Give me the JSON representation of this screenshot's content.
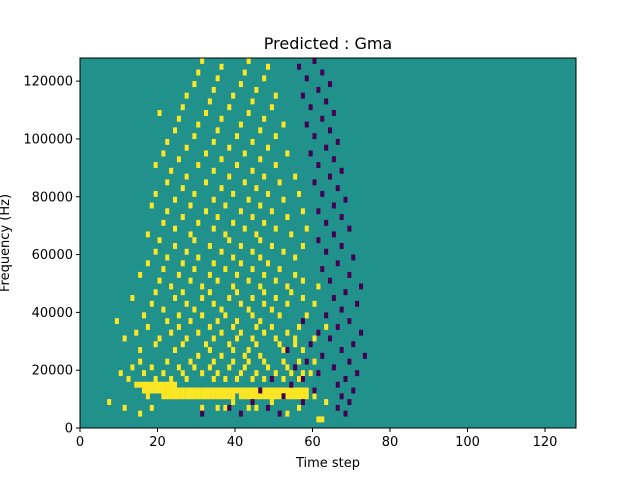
{
  "chart_data": {
    "type": "heatmap",
    "title": "Predicted : Gma",
    "xlabel": "Time step",
    "ylabel": "Frequency (Hz)",
    "xlim": [
      0,
      128
    ],
    "ylim": [
      0,
      128000
    ],
    "xticks": [
      0,
      20,
      40,
      60,
      80,
      100,
      120
    ],
    "yticks": [
      0,
      20000,
      40000,
      60000,
      80000,
      100000,
      120000
    ],
    "x_tick_labels": [
      "0",
      "20",
      "40",
      "60",
      "80",
      "100",
      "120"
    ],
    "y_tick_labels": [
      "0",
      "20000",
      "40000",
      "60000",
      "80000",
      "100000",
      "120000"
    ],
    "grid": false,
    "rows": 64,
    "cols": 128,
    "colors": {
      "background": "#21918c",
      "high": "#fde725",
      "low": "#440154"
    },
    "values_legend": "background = 0.5 (teal), high = 1 (yellow), low = 0 (purple)",
    "high_cells": [
      [
        1,
        62
      ],
      [
        1,
        61
      ],
      [
        2,
        53
      ],
      [
        2,
        15
      ],
      [
        3,
        56
      ],
      [
        3,
        45
      ],
      [
        3,
        43
      ],
      [
        3,
        37
      ],
      [
        3,
        35
      ],
      [
        3,
        31
      ],
      [
        3,
        18
      ],
      [
        3,
        11
      ],
      [
        4,
        63
      ],
      [
        4,
        49
      ],
      [
        4,
        39
      ],
      [
        4,
        7
      ],
      [
        5,
        60
      ],
      [
        5,
        58
      ],
      [
        5,
        57
      ],
      [
        5,
        56
      ],
      [
        5,
        55
      ],
      [
        5,
        54
      ],
      [
        5,
        53
      ],
      [
        5,
        52
      ],
      [
        5,
        51
      ],
      [
        5,
        50
      ],
      [
        5,
        49
      ],
      [
        5,
        48
      ],
      [
        5,
        47
      ],
      [
        5,
        46
      ],
      [
        5,
        45
      ],
      [
        5,
        44
      ],
      [
        5,
        43
      ],
      [
        5,
        42
      ],
      [
        5,
        41
      ],
      [
        5,
        39
      ],
      [
        5,
        38
      ],
      [
        5,
        37
      ],
      [
        5,
        36
      ],
      [
        5,
        35
      ],
      [
        5,
        34
      ],
      [
        5,
        33
      ],
      [
        5,
        32
      ],
      [
        5,
        31
      ],
      [
        5,
        30
      ],
      [
        5,
        29
      ],
      [
        5,
        28
      ],
      [
        5,
        27
      ],
      [
        5,
        26
      ],
      [
        5,
        25
      ],
      [
        5,
        24
      ],
      [
        5,
        23
      ],
      [
        5,
        22
      ],
      [
        5,
        21
      ],
      [
        5,
        17
      ],
      [
        6,
        58
      ],
      [
        6,
        57
      ],
      [
        6,
        56
      ],
      [
        6,
        55
      ],
      [
        6,
        54
      ],
      [
        6,
        53
      ],
      [
        6,
        52
      ],
      [
        6,
        51
      ],
      [
        6,
        50
      ],
      [
        6,
        49
      ],
      [
        6,
        48
      ],
      [
        6,
        47
      ],
      [
        6,
        46
      ],
      [
        6,
        45
      ],
      [
        6,
        44
      ],
      [
        6,
        43
      ],
      [
        6,
        42
      ],
      [
        6,
        41
      ],
      [
        6,
        40
      ],
      [
        6,
        39
      ],
      [
        6,
        38
      ],
      [
        6,
        37
      ],
      [
        6,
        36
      ],
      [
        6,
        35
      ],
      [
        6,
        34
      ],
      [
        6,
        33
      ],
      [
        6,
        32
      ],
      [
        6,
        31
      ],
      [
        6,
        30
      ],
      [
        6,
        29
      ],
      [
        6,
        28
      ],
      [
        6,
        27
      ],
      [
        6,
        26
      ],
      [
        6,
        25
      ],
      [
        6,
        24
      ],
      [
        6,
        23
      ],
      [
        6,
        22
      ],
      [
        6,
        21
      ],
      [
        6,
        20
      ],
      [
        6,
        19
      ],
      [
        6,
        18
      ],
      [
        6,
        17
      ],
      [
        6,
        16
      ],
      [
        7,
        24
      ],
      [
        7,
        23
      ],
      [
        7,
        22
      ],
      [
        7,
        21
      ],
      [
        7,
        20
      ],
      [
        7,
        19
      ],
      [
        7,
        18
      ],
      [
        7,
        17
      ],
      [
        7,
        16
      ],
      [
        7,
        15
      ],
      [
        7,
        14
      ],
      [
        8,
        56
      ],
      [
        8,
        52
      ],
      [
        8,
        47
      ],
      [
        8,
        44
      ],
      [
        8,
        40
      ],
      [
        8,
        37
      ],
      [
        8,
        34
      ],
      [
        8,
        27
      ],
      [
        8,
        23
      ],
      [
        8,
        19
      ],
      [
        8,
        12
      ],
      [
        9,
        59
      ],
      [
        9,
        57
      ],
      [
        9,
        54
      ],
      [
        9,
        50
      ],
      [
        9,
        45
      ],
      [
        9,
        41
      ],
      [
        9,
        35
      ],
      [
        9,
        31
      ],
      [
        9,
        26
      ],
      [
        9,
        21
      ],
      [
        9,
        16
      ],
      [
        9,
        10
      ],
      [
        10,
        53
      ],
      [
        10,
        48
      ],
      [
        10,
        42
      ],
      [
        10,
        38
      ],
      [
        10,
        33
      ],
      [
        10,
        29
      ],
      [
        10,
        25
      ],
      [
        10,
        18
      ],
      [
        10,
        13
      ],
      [
        11,
        60
      ],
      [
        11,
        56
      ],
      [
        11,
        52
      ],
      [
        11,
        47
      ],
      [
        11,
        43
      ],
      [
        11,
        39
      ],
      [
        11,
        34
      ],
      [
        11,
        28
      ],
      [
        11,
        22
      ],
      [
        11,
        15
      ],
      [
        12,
        46
      ],
      [
        12,
        42
      ],
      [
        12,
        36
      ],
      [
        12,
        30
      ],
      [
        13,
        57
      ],
      [
        13,
        52
      ],
      [
        13,
        43
      ],
      [
        13,
        39
      ],
      [
        13,
        33
      ],
      [
        13,
        24
      ],
      [
        13,
        15
      ],
      [
        14,
        55
      ],
      [
        14,
        51
      ],
      [
        14,
        45
      ],
      [
        14,
        38
      ],
      [
        14,
        32
      ],
      [
        14,
        26
      ],
      [
        14,
        19
      ],
      [
        15,
        60
      ],
      [
        15,
        55
      ],
      [
        15,
        50
      ],
      [
        15,
        44
      ],
      [
        15,
        40
      ],
      [
        15,
        34
      ],
      [
        15,
        27
      ],
      [
        15,
        20
      ],
      [
        15,
        11
      ],
      [
        16,
        53
      ],
      [
        16,
        47
      ],
      [
        16,
        41
      ],
      [
        16,
        36
      ],
      [
        16,
        30
      ],
      [
        16,
        23
      ],
      [
        16,
        14
      ],
      [
        17,
        63
      ],
      [
        17,
        56
      ],
      [
        17,
        49
      ],
      [
        17,
        45
      ],
      [
        17,
        39
      ],
      [
        17,
        33
      ],
      [
        17,
        25
      ],
      [
        17,
        17
      ],
      [
        18,
        46
      ],
      [
        18,
        40
      ],
      [
        18,
        35
      ],
      [
        18,
        28
      ],
      [
        18,
        22
      ],
      [
        18,
        9
      ],
      [
        19,
        58
      ],
      [
        19,
        51
      ],
      [
        19,
        44
      ],
      [
        19,
        37
      ],
      [
        19,
        31
      ],
      [
        19,
        25
      ],
      [
        19,
        16
      ],
      [
        20,
        49
      ],
      [
        20,
        43
      ],
      [
        20,
        36
      ],
      [
        20,
        29
      ],
      [
        20,
        21
      ],
      [
        21,
        60
      ],
      [
        21,
        53
      ],
      [
        21,
        47
      ],
      [
        21,
        41
      ],
      [
        21,
        34
      ],
      [
        21,
        27
      ],
      [
        21,
        18
      ],
      [
        22,
        57
      ],
      [
        22,
        50
      ],
      [
        22,
        44
      ],
      [
        22,
        38
      ],
      [
        22,
        31
      ],
      [
        22,
        24
      ],
      [
        22,
        13
      ],
      [
        23,
        54
      ],
      [
        23,
        47
      ],
      [
        23,
        40
      ],
      [
        23,
        33
      ],
      [
        23,
        26
      ],
      [
        23,
        19
      ],
      [
        24,
        61
      ],
      [
        24,
        53
      ],
      [
        24,
        46
      ],
      [
        24,
        39
      ],
      [
        24,
        31
      ],
      [
        24,
        23
      ],
      [
        25,
        57
      ],
      [
        25,
        50
      ],
      [
        25,
        43
      ],
      [
        25,
        35
      ],
      [
        25,
        28
      ],
      [
        25,
        20
      ],
      [
        26,
        55
      ],
      [
        26,
        47
      ],
      [
        26,
        40
      ],
      [
        26,
        33
      ],
      [
        26,
        25
      ],
      [
        26,
        15
      ],
      [
        27,
        51
      ],
      [
        27,
        44
      ],
      [
        27,
        37
      ],
      [
        27,
        29
      ],
      [
        27,
        21
      ],
      [
        28,
        48
      ],
      [
        28,
        41
      ],
      [
        28,
        34
      ],
      [
        28,
        26
      ],
      [
        28,
        17
      ],
      [
        29,
        55
      ],
      [
        29,
        46
      ],
      [
        29,
        39
      ],
      [
        29,
        30
      ],
      [
        29,
        22
      ],
      [
        30,
        52
      ],
      [
        30,
        44
      ],
      [
        30,
        36
      ],
      [
        30,
        27
      ],
      [
        30,
        19
      ],
      [
        31,
        57
      ],
      [
        31,
        49
      ],
      [
        31,
        41
      ],
      [
        31,
        33
      ],
      [
        31,
        24
      ],
      [
        32,
        46
      ],
      [
        32,
        38
      ],
      [
        32,
        29
      ],
      [
        32,
        20
      ],
      [
        33,
        54
      ],
      [
        33,
        45
      ],
      [
        33,
        37
      ],
      [
        33,
        28
      ],
      [
        33,
        17
      ],
      [
        34,
        58
      ],
      [
        34,
        50
      ],
      [
        34,
        42
      ],
      [
        34,
        34
      ],
      [
        34,
        24
      ],
      [
        35,
        47
      ],
      [
        35,
        39
      ],
      [
        35,
        30
      ],
      [
        35,
        21
      ],
      [
        36,
        53
      ],
      [
        36,
        44
      ],
      [
        36,
        35
      ],
      [
        36,
        26
      ],
      [
        37,
        57
      ],
      [
        37,
        49
      ],
      [
        37,
        41
      ],
      [
        37,
        32
      ],
      [
        37,
        22
      ],
      [
        38,
        46
      ],
      [
        38,
        37
      ],
      [
        38,
        28
      ],
      [
        38,
        18
      ],
      [
        39,
        52
      ],
      [
        39,
        43
      ],
      [
        39,
        34
      ],
      [
        39,
        24
      ],
      [
        40,
        56
      ],
      [
        40,
        48
      ],
      [
        40,
        39
      ],
      [
        40,
        29
      ],
      [
        40,
        19
      ],
      [
        41,
        45
      ],
      [
        41,
        36
      ],
      [
        41,
        26
      ],
      [
        42,
        51
      ],
      [
        42,
        42
      ],
      [
        42,
        32
      ],
      [
        42,
        22
      ],
      [
        43,
        55
      ],
      [
        43,
        47
      ],
      [
        43,
        38
      ],
      [
        43,
        27
      ],
      [
        44,
        44
      ],
      [
        44,
        34
      ],
      [
        44,
        23
      ],
      [
        45,
        50
      ],
      [
        45,
        40
      ],
      [
        45,
        30
      ],
      [
        45,
        19
      ],
      [
        46,
        46
      ],
      [
        46,
        36
      ],
      [
        46,
        25
      ],
      [
        47,
        53
      ],
      [
        47,
        42
      ],
      [
        47,
        32
      ],
      [
        47,
        21
      ],
      [
        48,
        48
      ],
      [
        48,
        38
      ],
      [
        48,
        27
      ],
      [
        49,
        44
      ],
      [
        49,
        34
      ],
      [
        49,
        22
      ],
      [
        50,
        50
      ],
      [
        50,
        40
      ],
      [
        50,
        29
      ],
      [
        51,
        46
      ],
      [
        51,
        35
      ],
      [
        51,
        24
      ],
      [
        52,
        52
      ],
      [
        52,
        41
      ],
      [
        52,
        30
      ],
      [
        53,
        47
      ],
      [
        53,
        36
      ],
      [
        53,
        25
      ],
      [
        54,
        43
      ],
      [
        54,
        32
      ],
      [
        54,
        20
      ],
      [
        55,
        49
      ],
      [
        55,
        38
      ],
      [
        55,
        26
      ],
      [
        56,
        44
      ],
      [
        56,
        33
      ],
      [
        57,
        50
      ],
      [
        57,
        39
      ],
      [
        57,
        27
      ],
      [
        58,
        45
      ],
      [
        58,
        34
      ],
      [
        59,
        41
      ],
      [
        59,
        29
      ],
      [
        60,
        47
      ],
      [
        60,
        35
      ],
      [
        61,
        42
      ],
      [
        61,
        30
      ],
      [
        62,
        48
      ],
      [
        62,
        36
      ],
      [
        63,
        43
      ],
      [
        63,
        31
      ]
    ],
    "low_cells": [
      [
        2,
        68
      ],
      [
        2,
        51
      ],
      [
        2,
        41
      ],
      [
        2,
        31
      ],
      [
        3,
        66
      ],
      [
        3,
        48
      ],
      [
        3,
        38
      ],
      [
        4,
        69
      ],
      [
        4,
        57
      ],
      [
        4,
        44
      ],
      [
        5,
        67
      ],
      [
        5,
        52
      ],
      [
        6,
        70
      ],
      [
        6,
        60
      ],
      [
        6,
        46
      ],
      [
        7,
        66
      ],
      [
        7,
        54
      ],
      [
        8,
        68
      ],
      [
        8,
        57
      ],
      [
        8,
        49
      ],
      [
        9,
        71
      ],
      [
        9,
        61
      ],
      [
        10,
        65
      ],
      [
        10,
        55
      ],
      [
        11,
        69
      ],
      [
        11,
        58
      ],
      [
        12,
        73
      ],
      [
        12,
        62
      ],
      [
        13,
        67
      ],
      [
        13,
        53
      ],
      [
        14,
        70
      ],
      [
        14,
        59
      ],
      [
        15,
        64
      ],
      [
        16,
        72
      ],
      [
        16,
        61
      ],
      [
        17,
        66
      ],
      [
        18,
        69
      ],
      [
        18,
        57
      ],
      [
        19,
        63
      ],
      [
        20,
        67
      ],
      [
        21,
        71
      ],
      [
        22,
        65
      ],
      [
        23,
        68
      ],
      [
        24,
        72
      ],
      [
        25,
        64
      ],
      [
        26,
        69
      ],
      [
        27,
        62
      ],
      [
        28,
        66
      ],
      [
        29,
        70
      ],
      [
        30,
        63
      ],
      [
        31,
        67
      ],
      [
        32,
        61
      ],
      [
        33,
        65
      ],
      [
        34,
        69
      ],
      [
        35,
        63
      ],
      [
        36,
        67
      ],
      [
        37,
        61
      ],
      [
        38,
        65
      ],
      [
        39,
        68
      ],
      [
        40,
        62
      ],
      [
        41,
        66
      ],
      [
        42,
        60
      ],
      [
        43,
        64
      ],
      [
        44,
        67
      ],
      [
        45,
        61
      ],
      [
        46,
        65
      ],
      [
        47,
        59
      ],
      [
        48,
        63
      ],
      [
        49,
        66
      ],
      [
        50,
        60
      ],
      [
        51,
        64
      ],
      [
        52,
        58
      ],
      [
        53,
        62
      ],
      [
        54,
        65
      ],
      [
        55,
        59
      ],
      [
        56,
        63
      ],
      [
        57,
        57
      ],
      [
        58,
        61
      ],
      [
        59,
        64
      ],
      [
        60,
        58
      ],
      [
        61,
        62
      ],
      [
        62,
        56
      ],
      [
        63,
        60
      ]
    ]
  }
}
